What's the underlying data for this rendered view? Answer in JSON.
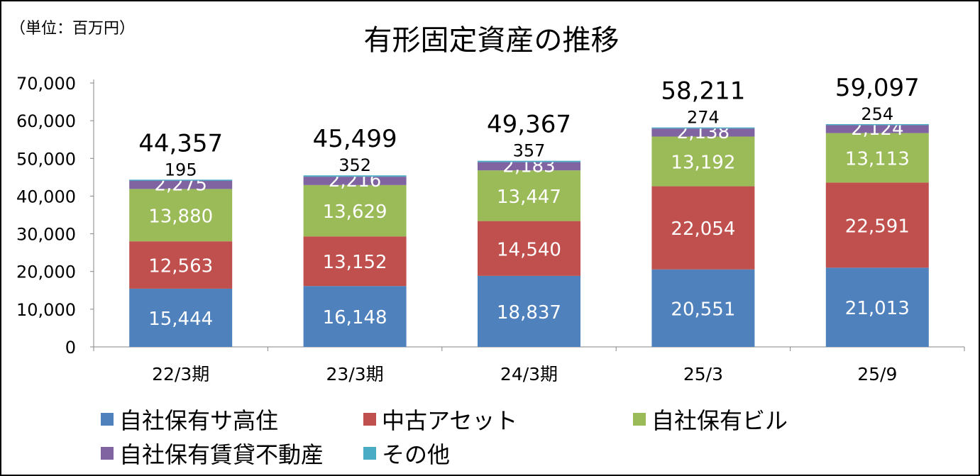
{
  "chart_data": {
    "type": "bar",
    "stacked": true,
    "title": "有形固定資産の推移",
    "unit_label": "（単位：百万円）",
    "xlabel": "",
    "ylabel": "",
    "ylim": [
      0,
      70000
    ],
    "yticks": [
      0,
      10000,
      20000,
      30000,
      40000,
      50000,
      60000,
      70000
    ],
    "ytick_labels": [
      "0",
      "10,000",
      "20,000",
      "30,000",
      "40,000",
      "50,000",
      "60,000",
      "70,000"
    ],
    "grid": false,
    "legend_position": "bottom",
    "categories": [
      "22/3期",
      "23/3期",
      "24/3期",
      "25/3",
      "25/9"
    ],
    "series": [
      {
        "name": "自社保有サ高住",
        "color": "#4F81BD",
        "label_color": "#ffffff",
        "values": [
          15444,
          16148,
          18837,
          20551,
          21013
        ],
        "labels": [
          "15,444",
          "16,148",
          "18,837",
          "20,551",
          "21,013"
        ]
      },
      {
        "name": "中古アセット",
        "color": "#C0504D",
        "label_color": "#ffffff",
        "values": [
          12563,
          13152,
          14540,
          22054,
          22591
        ],
        "labels": [
          "12,563",
          "13,152",
          "14,540",
          "22,054",
          "22,591"
        ]
      },
      {
        "name": "自社保有ビル",
        "color": "#9BBB59",
        "label_color": "#ffffff",
        "values": [
          13880,
          13629,
          13447,
          13192,
          13113
        ],
        "labels": [
          "13,880",
          "13,629",
          "13,447",
          "13,192",
          "13,113"
        ]
      },
      {
        "name": "自社保有賃貸不動産",
        "color": "#8064A2",
        "label_color": "#ffffff",
        "values": [
          2275,
          2216,
          2183,
          2138,
          2124
        ],
        "labels": [
          "2,275",
          "2,216",
          "2,183",
          "2,138",
          "2,124"
        ]
      },
      {
        "name": "その他",
        "color": "#4BACC6",
        "label_color": "#000000",
        "values": [
          195,
          352,
          357,
          274,
          254
        ],
        "labels": [
          "195",
          "352",
          "357",
          "274",
          "254"
        ]
      }
    ],
    "totals": [
      44357,
      45499,
      49367,
      58211,
      59097
    ],
    "total_labels": [
      "44,357",
      "45,499",
      "49,367",
      "58,211",
      "59,097"
    ]
  }
}
